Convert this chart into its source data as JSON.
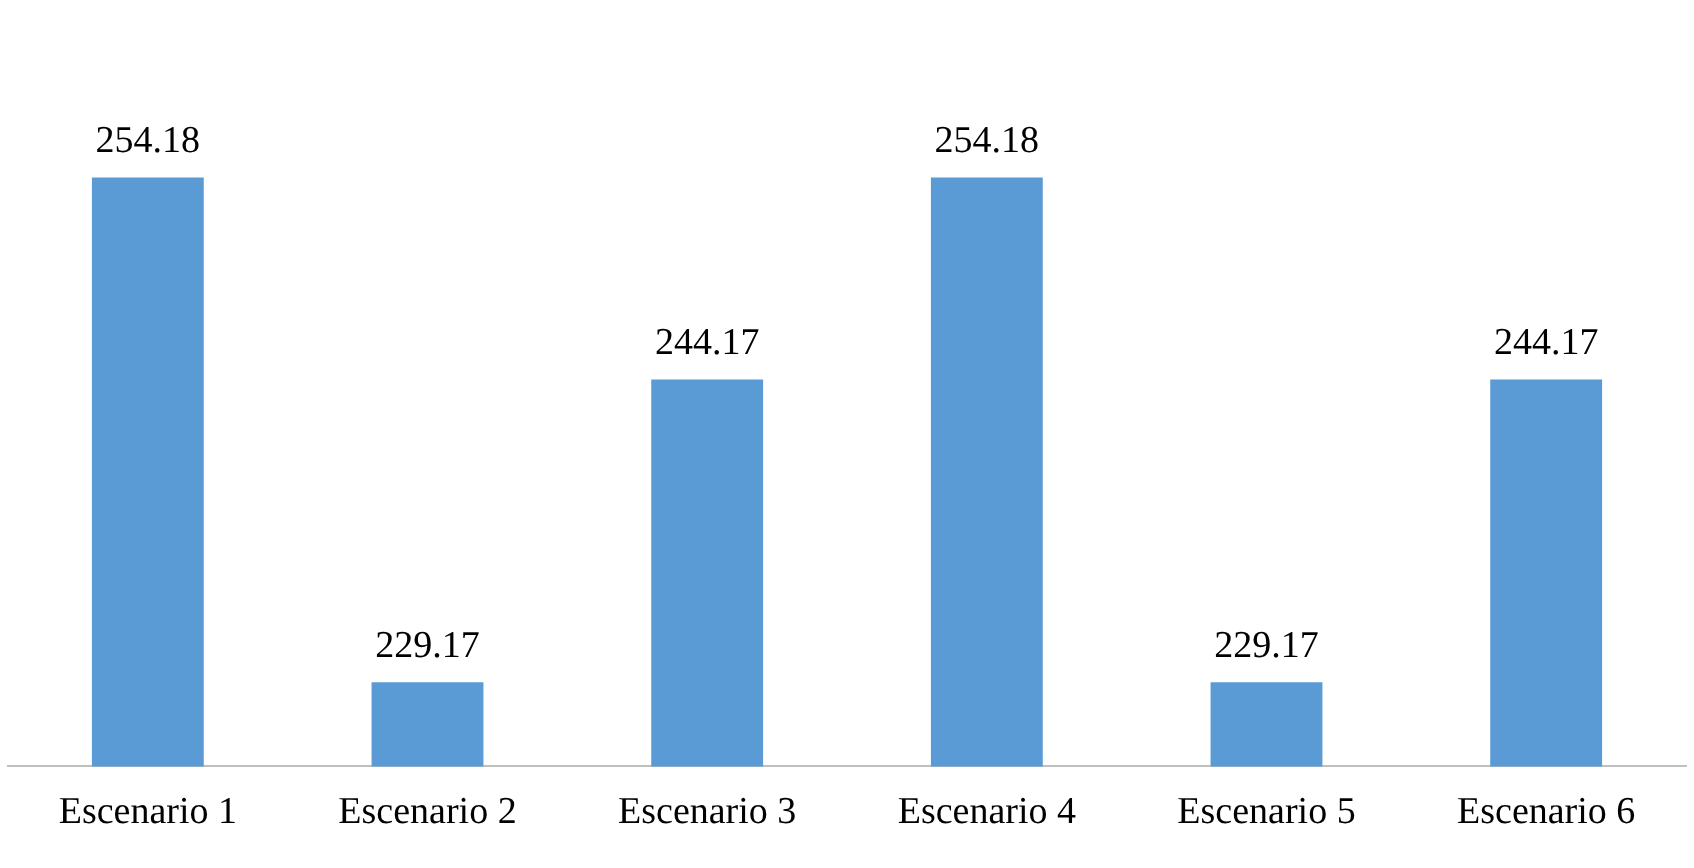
{
  "chart_data": {
    "type": "bar",
    "categories": [
      "Escenario 1",
      "Escenario 2",
      "Escenario 3",
      "Escenario 4",
      "Escenario 5",
      "Escenario 6"
    ],
    "values": [
      254.18,
      229.17,
      244.17,
      254.18,
      229.17,
      244.17
    ],
    "color": "#5b9bd5",
    "tick_labels": "x",
    "data_labels": true,
    "grid": false,
    "legend": false
  }
}
